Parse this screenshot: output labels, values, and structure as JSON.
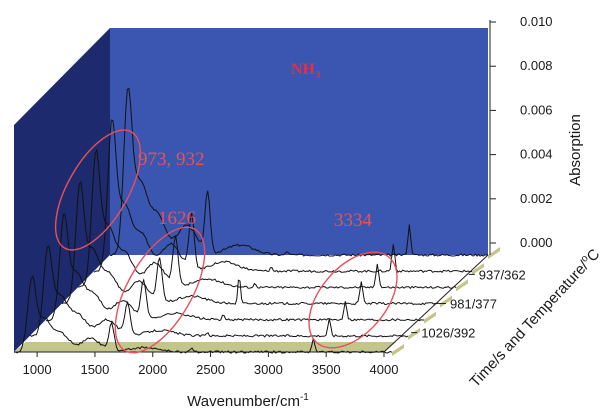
{
  "chart_data": {
    "type": "line",
    "style": "3d-waterfall",
    "compound": "NH",
    "compound_subscript": "3",
    "xlabel": "Wavenumber/cm",
    "xlabel_superscript": "-1",
    "ylabel": "Absorption",
    "zlabel": "Time/s and Temperature/",
    "zlabel_superscript": "o",
    "zlabel_unit": "C",
    "x_ticks": [
      "1000",
      "1500",
      "2000",
      "2500",
      "3000",
      "3500",
      "4000"
    ],
    "y_ticks": [
      "0.000",
      "0.002",
      "0.004",
      "0.006",
      "0.008",
      "0.010"
    ],
    "ylim": [
      0,
      0.01
    ],
    "xlim": [
      800,
      4000
    ],
    "series_labels": [
      "937/362",
      "981/377",
      "1026/392"
    ],
    "annotations": [
      {
        "text": "973, 932",
        "wavenumber": 950
      },
      {
        "text": "1626",
        "wavenumber": 1626
      },
      {
        "text": "3334",
        "wavenumber": 3334
      }
    ],
    "grid": false,
    "colors": {
      "back_wall": "#3b56b0",
      "side_wall": "#1d2a6e",
      "floor": "#c3c58a",
      "annotation": "#e8505b",
      "trace": "#111111"
    }
  }
}
